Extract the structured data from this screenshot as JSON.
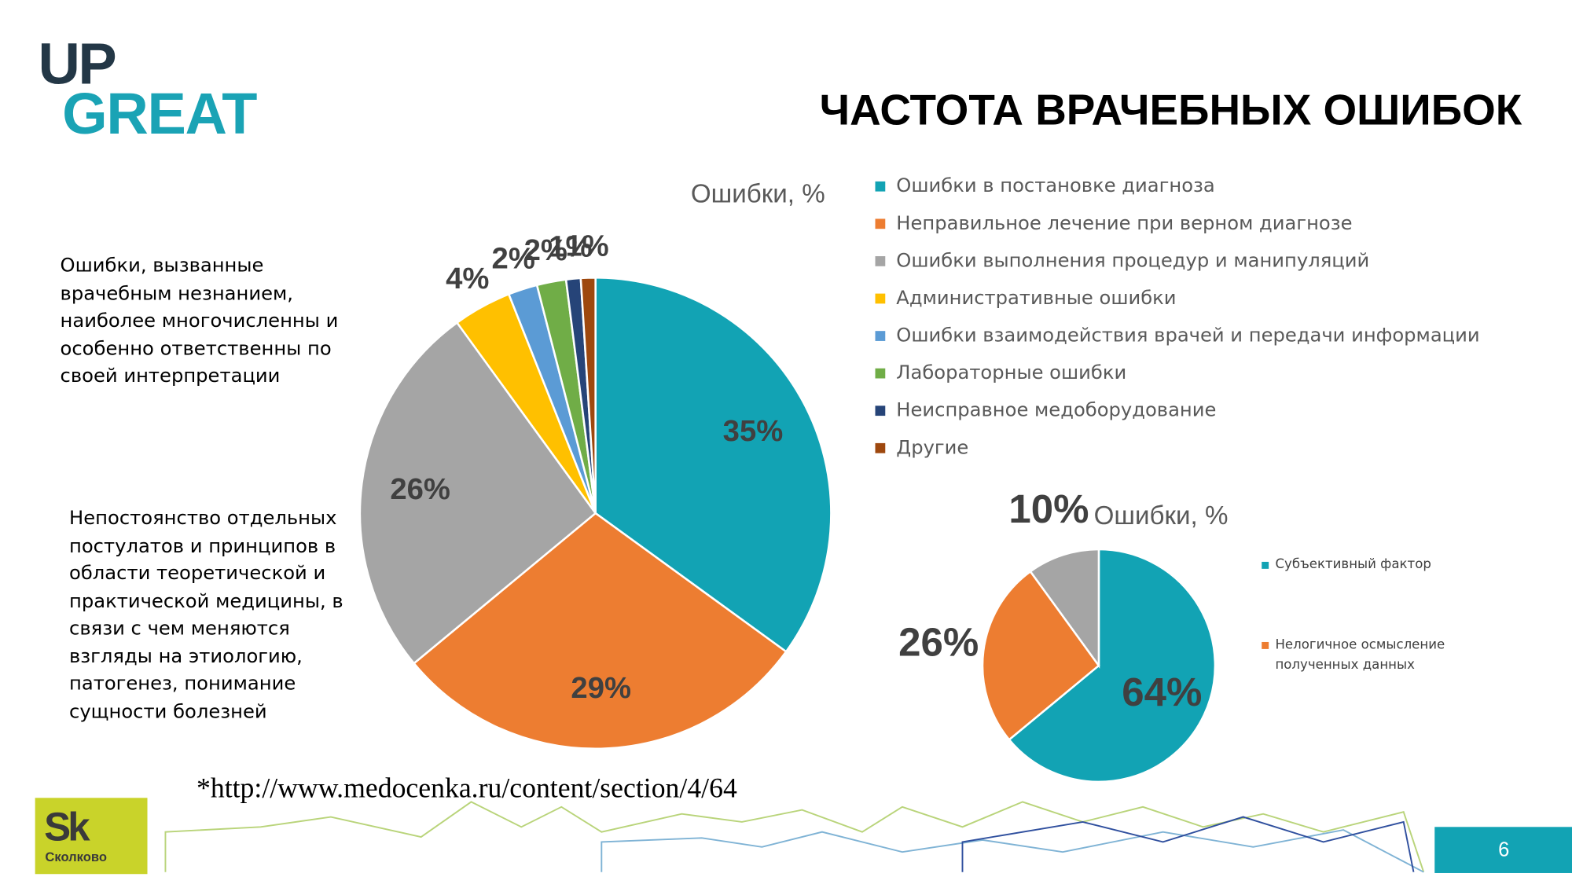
{
  "logo": {
    "top": "UP",
    "bottom": "GREAT"
  },
  "header": {
    "title": "ЧАСТОТА ВРАЧЕБНЫХ ОШИБОК"
  },
  "notes": [
    "Ошибки, вызванные врачебным незнанием, наиболее многочисленны и особенно ответственны по своей интерпретации",
    "Непостоянство отдельных постулатов и принципов в области теоретической и практической медицины, в связи с чем меняются взгляды на этиологию, патогенез, понимание сущности болезней"
  ],
  "chart_data": [
    {
      "type": "pie",
      "title": "Ошибки, %",
      "categories": [
        "Ошибки в постановке диагноза",
        "Неправильное лечение при верном диагнозе",
        "Ошибки выполнения процедур и манипуляций",
        "Административные ошибки",
        "Ошибки взаимодействия врачей и передачи информации",
        "Лабораторные ошибки",
        "Неисправное медоборудование",
        "Другие"
      ],
      "values": [
        35,
        29,
        26,
        4,
        2,
        2,
        1,
        1
      ],
      "value_labels": [
        "35%",
        "29%",
        "26%",
        "4%",
        "2%",
        "2%",
        "1%",
        "1%"
      ],
      "colors": [
        "#12a3b4",
        "#ed7d31",
        "#a5a5a5",
        "#ffc000",
        "#5b9bd5",
        "#70ad47",
        "#264478",
        "#9e480e"
      ],
      "legend": "right"
    },
    {
      "type": "pie",
      "title": "Ошибки, %",
      "categories": [
        "Субъективный фактор",
        "Нелогичное осмысление полученных данных",
        null
      ],
      "values": [
        64,
        26,
        10
      ],
      "value_labels": [
        "64%",
        "26%",
        "10%"
      ],
      "colors": [
        "#12a3b4",
        "#ed7d31",
        "#a5a5a5"
      ],
      "legend": "right"
    }
  ],
  "footer": {
    "source": "*http://www.medocenka.ru/content/section/4/64",
    "brand": "Sk",
    "brand_name": "Сколково",
    "page": "6"
  }
}
